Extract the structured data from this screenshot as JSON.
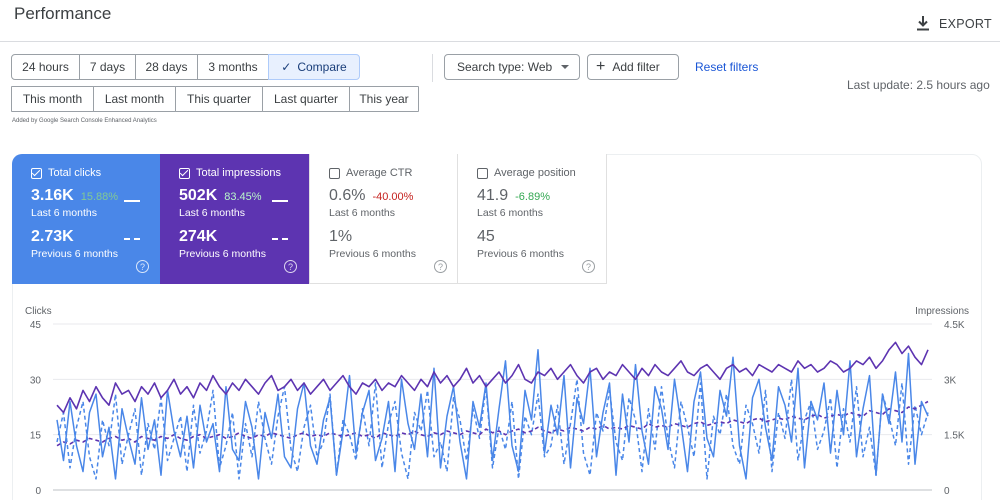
{
  "header": {
    "title": "Performance",
    "export_label": "EXPORT"
  },
  "date_range": {
    "row1": [
      "24 hours",
      "7 days",
      "28 days",
      "3 months"
    ],
    "compare_label": "Compare",
    "row2": [
      "This month",
      "Last month",
      "This quarter",
      "Last quarter",
      "This year"
    ]
  },
  "filters": {
    "search_type": "Search type: Web",
    "add_filter": "Add filter",
    "reset": "Reset filters",
    "last_update": "Last update: 2.5 hours ago",
    "added_note": "Added by Google Search Console Enhanced Analytics"
  },
  "metrics": [
    {
      "name": "Total clicks",
      "value": "3.16K",
      "change": "15.88%",
      "period": "Last 6 months",
      "prev_value": "2.73K",
      "prev_period": "Previous 6 months",
      "checked": true
    },
    {
      "name": "Total impressions",
      "value": "502K",
      "change": "83.45%",
      "period": "Last 6 months",
      "prev_value": "274K",
      "prev_period": "Previous 6 months",
      "checked": true
    },
    {
      "name": "Average CTR",
      "value": "0.6%",
      "change": "-40.00%",
      "period": "Last 6 months",
      "prev_value": "1%",
      "prev_period": "Previous 6 months",
      "checked": false
    },
    {
      "name": "Average position",
      "value": "41.9",
      "change": "-6.89%",
      "period": "Last 6 months",
      "prev_value": "45",
      "prev_period": "Previous 6 months",
      "checked": false
    }
  ],
  "colors": {
    "clicks": "#4a87e8",
    "impressions": "#5d34b1"
  },
  "chart_data": {
    "type": "line",
    "left_axis": {
      "label": "Clicks",
      "ticks": [
        "45",
        "30",
        "15",
        "0"
      ],
      "range": [
        0,
        45
      ]
    },
    "right_axis": {
      "label": "Impressions",
      "ticks": [
        "4.5K",
        "3K",
        "1.5K",
        "0"
      ],
      "range": [
        0,
        4500
      ]
    },
    "grid": true,
    "series": [
      {
        "name": "Total clicks",
        "axis": "left",
        "style": "solid",
        "color": "#4a87e8",
        "values": [
          19,
          8,
          24,
          12,
          5,
          21,
          26,
          9,
          17,
          3,
          22,
          14,
          7,
          25,
          11,
          19,
          4,
          27,
          16,
          9,
          20,
          6,
          23,
          13,
          18,
          5,
          28,
          11,
          8,
          24,
          17,
          3,
          21,
          14,
          26,
          9,
          6,
          22,
          29,
          12,
          7,
          19,
          25,
          4,
          16,
          31,
          10,
          21,
          27,
          8,
          14,
          24,
          5,
          30,
          18,
          11,
          26,
          9,
          33,
          6,
          20,
          28,
          13,
          3,
          24,
          17,
          29,
          8,
          22,
          35,
          12,
          5,
          27,
          19,
          38,
          10,
          23,
          15,
          31,
          6,
          25,
          18,
          33,
          9,
          21,
          29,
          4,
          26,
          13,
          34,
          16,
          7,
          28,
          22,
          11,
          30,
          18,
          5,
          24,
          32,
          14,
          9,
          27,
          20,
          36,
          12,
          3,
          25,
          30,
          17,
          8,
          28,
          23,
          13,
          33,
          6,
          24,
          19,
          29,
          10,
          27,
          15,
          35,
          9,
          22,
          31,
          4,
          26,
          18,
          32,
          13,
          37,
          7,
          24,
          20
        ]
      },
      {
        "name": "Total clicks (previous)",
        "axis": "left",
        "style": "dashed",
        "color": "#4a87e8",
        "values": [
          13,
          21,
          6,
          17,
          24,
          9,
          3,
          19,
          12,
          26,
          7,
          15,
          22,
          4,
          18,
          11,
          25,
          8,
          14,
          20,
          5,
          23,
          10,
          16,
          27,
          6,
          12,
          21,
          3,
          18,
          9,
          24,
          14,
          7,
          20,
          28,
          11,
          5,
          17,
          23,
          9,
          13,
          26,
          4,
          19,
          15,
          8,
          22,
          12,
          29,
          6,
          18,
          24,
          10,
          3,
          21,
          16,
          27,
          9,
          13,
          5,
          25,
          19,
          8,
          22,
          14,
          28,
          6,
          17,
          11,
          24,
          3,
          20,
          15,
          26,
          9,
          12,
          23,
          7,
          18,
          30,
          10,
          4,
          21,
          16,
          27,
          13,
          8,
          25,
          19,
          5,
          22,
          11,
          28,
          14,
          6,
          24,
          17,
          9,
          29,
          3,
          20,
          15,
          26,
          12,
          7,
          23,
          18,
          10,
          27,
          5,
          21,
          14,
          30,
          8,
          19,
          24,
          11,
          16,
          25,
          6,
          22,
          13,
          28,
          9,
          17,
          4,
          26,
          20,
          12,
          29,
          7,
          23,
          15,
          21
        ]
      },
      {
        "name": "Total impressions",
        "axis": "right",
        "style": "solid",
        "color": "#5d34b1",
        "values": [
          2300,
          2100,
          2500,
          2200,
          2700,
          2400,
          2800,
          2500,
          2300,
          2900,
          2600,
          2700,
          2400,
          2800,
          2600,
          2900,
          2500,
          2700,
          3000,
          2600,
          2800,
          2500,
          2900,
          2700,
          3100,
          2800,
          2600,
          2900,
          2700,
          3000,
          2800,
          2600,
          2900,
          3100,
          2700,
          2800,
          3000,
          2700,
          2900,
          2600,
          2800,
          3000,
          2700,
          2900,
          3100,
          2800,
          2600,
          2900,
          2800,
          3000,
          2700,
          2900,
          2800,
          3100,
          2900,
          2700,
          3000,
          2800,
          3200,
          2900,
          3100,
          2800,
          3000,
          3300,
          2900,
          3100,
          2800,
          3000,
          3200,
          2900,
          3100,
          3400,
          3000,
          2900,
          3200,
          3100,
          3300,
          3000,
          3200,
          3400,
          3100,
          2900,
          3200,
          3300,
          3000,
          3200,
          3100,
          3400,
          3200,
          3000,
          3300,
          3100,
          3400,
          3200,
          3100,
          3300,
          3500,
          3200,
          3100,
          3300,
          3400,
          3200,
          3000,
          3300,
          3400,
          3200,
          3300,
          3100,
          3400,
          3300,
          3200,
          3400,
          3300,
          3200,
          3500,
          3300,
          3400,
          3200,
          3300,
          3500,
          3400,
          3200,
          3300,
          3500,
          3400,
          3600,
          3300,
          3500,
          3800,
          4000,
          3700,
          3900,
          3600,
          3400,
          3800
        ]
      },
      {
        "name": "Total impressions (previous)",
        "axis": "right",
        "style": "dashed",
        "color": "#5d34b1",
        "values": [
          1200,
          1300,
          1250,
          1350,
          1300,
          1400,
          1350,
          1300,
          1400,
          1450,
          1350,
          1400,
          1300,
          1450,
          1400,
          1350,
          1450,
          1400,
          1500,
          1400,
          1350,
          1450,
          1500,
          1400,
          1450,
          1500,
          1400,
          1450,
          1550,
          1450,
          1400,
          1500,
          1450,
          1550,
          1500,
          1450,
          1400,
          1500,
          1550,
          1450,
          1500,
          1450,
          1550,
          1500,
          1450,
          1500,
          1550,
          1450,
          1500,
          1400,
          1550,
          1500,
          1450,
          1550,
          1500,
          1600,
          1500,
          1450,
          1550,
          1500,
          1600,
          1550,
          1500,
          1600,
          1550,
          1500,
          1650,
          1550,
          1600,
          1500,
          1600,
          1650,
          1550,
          1600,
          1700,
          1600,
          1550,
          1650,
          1600,
          1700,
          1650,
          1600,
          1700,
          1650,
          1750,
          1650,
          1700,
          1650,
          1750,
          1700,
          1650,
          1800,
          1700,
          1750,
          1700,
          1800,
          1750,
          1700,
          1800,
          1850,
          1750,
          1800,
          1850,
          1800,
          1900,
          1850,
          1800,
          1900,
          1950,
          1850,
          1900,
          1950,
          1900,
          2000,
          1950,
          1900,
          2000,
          2050,
          1950,
          2000,
          2050,
          2000,
          2100,
          2050,
          2000,
          2150,
          2100,
          2050,
          2200,
          2150,
          2100,
          2250,
          2200,
          2300,
          2400
        ]
      }
    ]
  }
}
